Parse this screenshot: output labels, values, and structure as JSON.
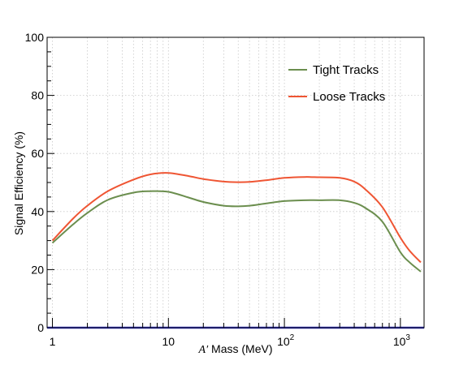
{
  "chart_data": {
    "type": "line",
    "xlabel_prefix": "A′",
    "xlabel_suffix": " Mass (MeV)",
    "ylabel": "Signal Efficiency (%)",
    "xscale": "log",
    "xlim": [
      0.9,
      1600
    ],
    "ylim": [
      0,
      100
    ],
    "grid": true,
    "legend_position": "top-right",
    "y_ticks": [
      0,
      20,
      40,
      60,
      80,
      100
    ],
    "x_tick_labels": [
      {
        "value": 1,
        "base": "1",
        "exp": ""
      },
      {
        "value": 10,
        "base": "10",
        "exp": ""
      },
      {
        "value": 100,
        "base": "10",
        "exp": "2"
      },
      {
        "value": 1000,
        "base": "10",
        "exp": "3"
      }
    ],
    "series": [
      {
        "name": "Tight Tracks",
        "color": "#6b8e4e",
        "x": [
          1,
          1.5,
          2,
          3,
          5,
          7,
          10,
          15,
          20,
          30,
          40,
          50,
          70,
          100,
          150,
          200,
          300,
          400,
          500,
          700,
          1000,
          1200,
          1500
        ],
        "y": [
          29.2,
          35.5,
          39.5,
          44,
          46.5,
          47,
          46.8,
          44.8,
          43.3,
          42,
          41.8,
          42,
          42.8,
          43.6,
          43.9,
          43.9,
          43.9,
          43,
          41.2,
          36.5,
          26,
          22.5,
          19.3
        ]
      },
      {
        "name": "Loose Tracks",
        "color": "#ef5533",
        "x": [
          1,
          1.5,
          2,
          3,
          5,
          7,
          10,
          15,
          20,
          30,
          40,
          50,
          70,
          100,
          150,
          200,
          300,
          400,
          500,
          700,
          1000,
          1200,
          1500
        ],
        "y": [
          30,
          37.5,
          42,
          47,
          51,
          52.8,
          53.3,
          52.2,
          51.2,
          50.3,
          50.1,
          50.2,
          50.8,
          51.6,
          51.9,
          51.8,
          51.6,
          50.3,
          47.6,
          41.5,
          31,
          26.5,
          22.5
        ]
      }
    ]
  }
}
